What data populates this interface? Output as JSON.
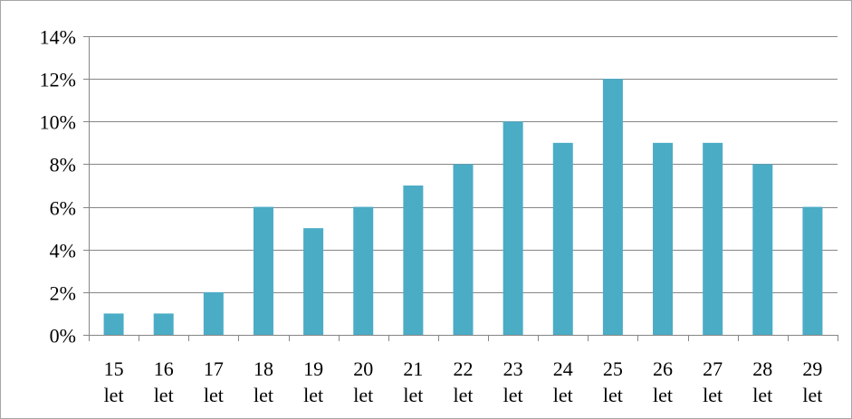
{
  "chart_data": {
    "type": "bar",
    "title": "",
    "xlabel": "",
    "ylabel": "",
    "categories": [
      [
        "15",
        "let"
      ],
      [
        "16",
        "let"
      ],
      [
        "17",
        "let"
      ],
      [
        "18",
        "let"
      ],
      [
        "19",
        "let"
      ],
      [
        "20",
        "let"
      ],
      [
        "21",
        "let"
      ],
      [
        "22",
        "let"
      ],
      [
        "23",
        "let"
      ],
      [
        "24",
        "let"
      ],
      [
        "25",
        "let"
      ],
      [
        "26",
        "let"
      ],
      [
        "27",
        "let"
      ],
      [
        "28",
        "let"
      ],
      [
        "29",
        "let"
      ]
    ],
    "values": [
      1,
      1,
      2,
      6,
      5,
      6,
      7,
      8,
      10,
      9,
      12,
      9,
      9,
      8,
      6
    ],
    "value_unit": "%",
    "ylim": [
      0,
      14
    ],
    "yticks": [
      0,
      2,
      4,
      6,
      8,
      10,
      12,
      14
    ],
    "ytick_labels": [
      "0%",
      "2%",
      "4%",
      "6%",
      "8%",
      "10%",
      "12%",
      "14%"
    ],
    "grid": "horizontal",
    "legend": "none",
    "colors": {
      "bar": "#4bacc6",
      "grid": "#868686",
      "axis": "#868686",
      "frame": "#a6a6a6"
    }
  }
}
